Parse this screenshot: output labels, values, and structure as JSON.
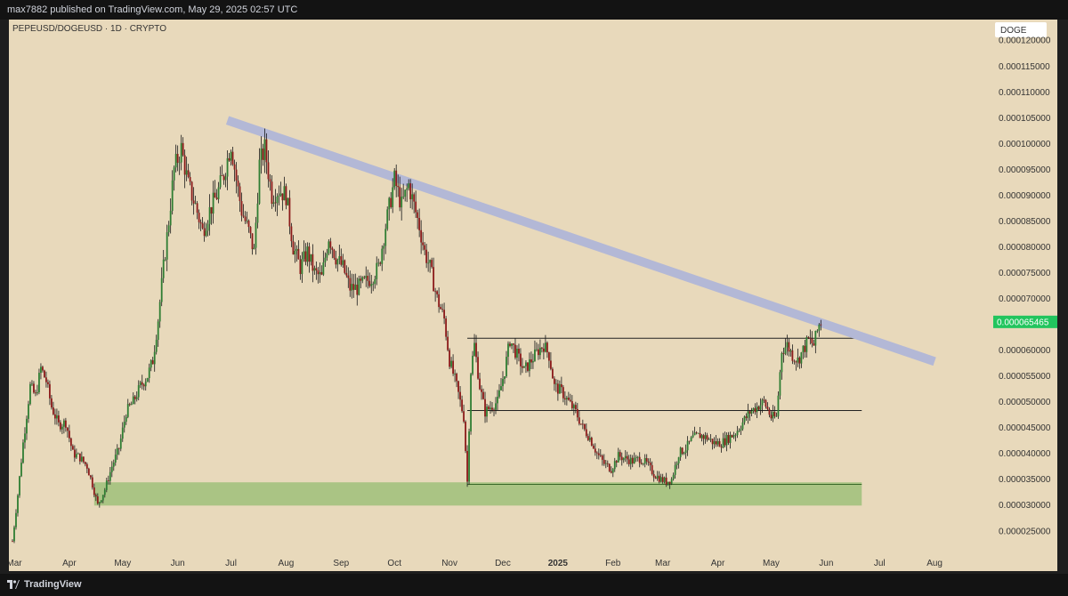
{
  "header": {
    "published_text": "max7882 published on TradingView.com, May 29, 2025 02:57 UTC"
  },
  "footer": {
    "brand": "TradingView"
  },
  "chart_data": {
    "type": "candlestick",
    "symbol_label": "PEPEUSD/DOGEUSD · 1D · CRYPTO",
    "price_scale_label": "DOGE",
    "current_price": "0.000065465",
    "colors": {
      "up": "#2e7d32",
      "down": "#8b1a1a",
      "trendline": "#b3b8d6",
      "support_zone": "#9fbf7a",
      "last_price": "#22c55e",
      "background": "#e8d9bb"
    },
    "y_ticks": [
      "0.000120000",
      "0.000115000",
      "0.000110000",
      "0.000105000",
      "0.000100000",
      "0.000095000",
      "0.000090000",
      "0.000085000",
      "0.000080000",
      "0.000075000",
      "0.000070000",
      "0.000065000",
      "0.000060000",
      "0.000055000",
      "0.000050000",
      "0.000045000",
      "0.000040000",
      "0.000035000",
      "0.000030000",
      "0.000025000"
    ],
    "x_ticks": [
      "Mar",
      "Apr",
      "May",
      "Jun",
      "Jul",
      "Aug",
      "Sep",
      "Oct",
      "Nov",
      "Dec",
      "2025",
      "Feb",
      "Mar",
      "Apr",
      "May",
      "Jun",
      "Jul",
      "Aug"
    ],
    "ylim": [
      2.1e-05,
      0.000124
    ],
    "price_points": [
      [
        "2024-02-29",
        2.3e-05
      ],
      [
        "2024-03-03",
        3.2e-05
      ],
      [
        "2024-03-06",
        4.2e-05
      ],
      [
        "2024-03-10",
        5.3e-05
      ],
      [
        "2024-03-13",
        5.1e-05
      ],
      [
        "2024-03-16",
        5.65e-05
      ],
      [
        "2024-03-19",
        5.4e-05
      ],
      [
        "2024-03-22",
        4.9e-05
      ],
      [
        "2024-03-26",
        4.55e-05
      ],
      [
        "2024-03-30",
        4.6e-05
      ],
      [
        "2024-04-03",
        4e-05
      ],
      [
        "2024-04-07",
        3.92e-05
      ],
      [
        "2024-04-11",
        3.75e-05
      ],
      [
        "2024-04-14",
        3.4e-05
      ],
      [
        "2024-04-17",
        3e-05
      ],
      [
        "2024-04-21",
        3.3e-05
      ],
      [
        "2024-04-25",
        3.75e-05
      ],
      [
        "2024-04-29",
        4.1e-05
      ],
      [
        "2024-05-03",
        4.8e-05
      ],
      [
        "2024-05-07",
        5e-05
      ],
      [
        "2024-05-11",
        5.3e-05
      ],
      [
        "2024-05-15",
        5.5e-05
      ],
      [
        "2024-05-18",
        5.8e-05
      ],
      [
        "2024-05-21",
        6.6e-05
      ],
      [
        "2024-05-24",
        7.6e-05
      ],
      [
        "2024-05-27",
        8.5e-05
      ],
      [
        "2024-05-30",
        9.5e-05
      ],
      [
        "2024-06-03",
        9.9e-05
      ],
      [
        "2024-06-07",
        9.2e-05
      ],
      [
        "2024-06-11",
        8.8e-05
      ],
      [
        "2024-06-15",
        8.3e-05
      ],
      [
        "2024-06-19",
        8.7e-05
      ],
      [
        "2024-06-23",
        9e-05
      ],
      [
        "2024-06-27",
        9.4e-05
      ],
      [
        "2024-07-01",
        0.0001
      ],
      [
        "2024-07-04",
        9.3e-05
      ],
      [
        "2024-07-07",
        8.7e-05
      ],
      [
        "2024-07-11",
        8.3e-05
      ],
      [
        "2024-07-14",
        7.9e-05
      ],
      [
        "2024-07-17",
        9.6e-05
      ],
      [
        "2024-07-20",
        9.9e-05
      ],
      [
        "2024-07-24",
        9e-05
      ],
      [
        "2024-07-28",
        9.1e-05
      ],
      [
        "2024-08-01",
        9e-05
      ],
      [
        "2024-08-05",
        8e-05
      ],
      [
        "2024-08-09",
        7.6e-05
      ],
      [
        "2024-08-13",
        7.9e-05
      ],
      [
        "2024-08-17",
        7.5e-05
      ],
      [
        "2024-08-21",
        7.4e-05
      ],
      [
        "2024-08-25",
        8.2e-05
      ],
      [
        "2024-08-29",
        7.8e-05
      ],
      [
        "2024-09-02",
        7.6e-05
      ],
      [
        "2024-09-06",
        7.2e-05
      ],
      [
        "2024-09-10",
        7.2e-05
      ],
      [
        "2024-09-14",
        7.3e-05
      ],
      [
        "2024-09-18",
        7.4e-05
      ],
      [
        "2024-09-22",
        7.6e-05
      ],
      [
        "2024-09-26",
        8.4e-05
      ],
      [
        "2024-10-01",
        9.3e-05
      ],
      [
        "2024-10-05",
        8.8e-05
      ],
      [
        "2024-10-09",
        9.2e-05
      ],
      [
        "2024-10-12",
        8.8e-05
      ],
      [
        "2024-10-15",
        8.4e-05
      ],
      [
        "2024-10-18",
        7.9e-05
      ],
      [
        "2024-10-21",
        7.6e-05
      ],
      [
        "2024-10-25",
        7e-05
      ],
      [
        "2024-10-29",
        6.6e-05
      ],
      [
        "2024-11-01",
        5.8e-05
      ],
      [
        "2024-11-05",
        5.3e-05
      ],
      [
        "2024-11-09",
        4.7e-05
      ],
      [
        "2024-11-11",
        3.45e-05
      ],
      [
        "2024-11-13",
        5.6e-05
      ],
      [
        "2024-11-15",
        6.1e-05
      ],
      [
        "2024-11-18",
        5.3e-05
      ],
      [
        "2024-11-21",
        4.8e-05
      ],
      [
        "2024-11-24",
        4.9e-05
      ],
      [
        "2024-11-28",
        5e-05
      ],
      [
        "2024-12-02",
        5.6e-05
      ],
      [
        "2024-12-05",
        6.2e-05
      ],
      [
        "2024-12-09",
        5.9e-05
      ],
      [
        "2024-12-13",
        5.6e-05
      ],
      [
        "2024-12-17",
        5.8e-05
      ],
      [
        "2024-12-21",
        6e-05
      ],
      [
        "2024-12-24",
        6.1e-05
      ],
      [
        "2024-12-27",
        5.9e-05
      ],
      [
        "2024-12-30",
        5.3e-05
      ],
      [
        "2025-01-03",
        5.2e-05
      ],
      [
        "2025-01-07",
        5e-05
      ],
      [
        "2025-01-11",
        4.8e-05
      ],
      [
        "2025-01-15",
        4.5e-05
      ],
      [
        "2025-01-19",
        4.3e-05
      ],
      [
        "2025-01-23",
        4e-05
      ],
      [
        "2025-01-27",
        3.8e-05
      ],
      [
        "2025-01-31",
        3.7e-05
      ],
      [
        "2025-02-04",
        3.95e-05
      ],
      [
        "2025-02-08",
        3.9e-05
      ],
      [
        "2025-02-12",
        3.85e-05
      ],
      [
        "2025-02-16",
        3.9e-05
      ],
      [
        "2025-02-20",
        3.8e-05
      ],
      [
        "2025-02-24",
        3.6e-05
      ],
      [
        "2025-02-28",
        3.5e-05
      ],
      [
        "2025-03-03",
        3.45e-05
      ],
      [
        "2025-03-06",
        3.5e-05
      ],
      [
        "2025-03-10",
        4e-05
      ],
      [
        "2025-03-14",
        4.1e-05
      ],
      [
        "2025-03-18",
        4.3e-05
      ],
      [
        "2025-03-22",
        4.35e-05
      ],
      [
        "2025-03-26",
        4.3e-05
      ],
      [
        "2025-03-30",
        4.2e-05
      ],
      [
        "2025-04-03",
        4.2e-05
      ],
      [
        "2025-04-07",
        4.3e-05
      ],
      [
        "2025-04-11",
        4.4e-05
      ],
      [
        "2025-04-15",
        4.6e-05
      ],
      [
        "2025-04-19",
        4.8e-05
      ],
      [
        "2025-04-23",
        4.9e-05
      ],
      [
        "2025-04-27",
        5e-05
      ],
      [
        "2025-05-01",
        4.7e-05
      ],
      [
        "2025-05-04",
        4.7e-05
      ],
      [
        "2025-05-07",
        6e-05
      ],
      [
        "2025-05-10",
        6.1e-05
      ],
      [
        "2025-05-13",
        5.9e-05
      ],
      [
        "2025-05-16",
        5.8e-05
      ],
      [
        "2025-05-19",
        6e-05
      ],
      [
        "2025-05-22",
        6.2e-05
      ],
      [
        "2025-05-25",
        6.1e-05
      ],
      [
        "2025-05-28",
        6.5e-05
      ],
      [
        "2025-05-29",
        6.5465e-05
      ]
    ],
    "trendline": {
      "start": [
        "2024-06-29",
        0.0001045
      ],
      "end": [
        "2025-08-01",
        5.78e-05
      ]
    },
    "horizontal_lines": [
      {
        "from": "2024-11-11",
        "to": "2025-06-21",
        "value": 6.23e-05
      },
      {
        "from": "2024-11-11",
        "to": "2025-06-21",
        "value": 4.83e-05
      },
      {
        "from": "2024-11-11",
        "to": "2025-06-21",
        "value": 3.4e-05
      }
    ],
    "support_zone": {
      "from": "2024-04-15",
      "to": "2025-06-21",
      "low": 2.99e-05,
      "high": 3.44e-05
    },
    "x_range": [
      "2024-02-27",
      "2025-08-31"
    ]
  }
}
